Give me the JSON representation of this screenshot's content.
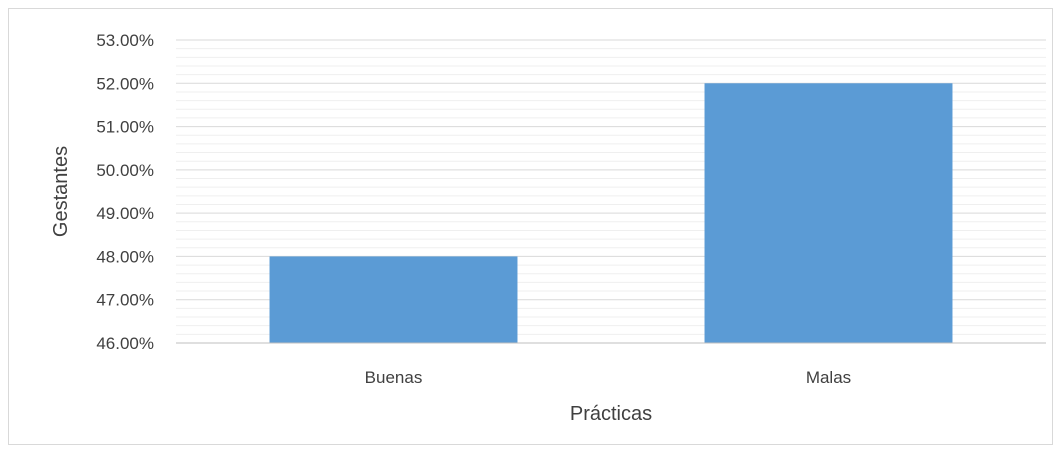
{
  "chart_data": {
    "type": "bar",
    "categories": [
      "Buenas",
      "Malas"
    ],
    "values": [
      48.0,
      52.0
    ],
    "xlabel": "Prácticas",
    "ylabel": "Gestantes",
    "ylim": [
      46.0,
      53.0
    ],
    "yticks": [
      "46.00%",
      "47.00%",
      "48.00%",
      "49.00%",
      "50.00%",
      "51.00%",
      "52.00%",
      "53.00%"
    ],
    "bar_color": "#5b9bd5",
    "grid": true,
    "legend": "none"
  }
}
